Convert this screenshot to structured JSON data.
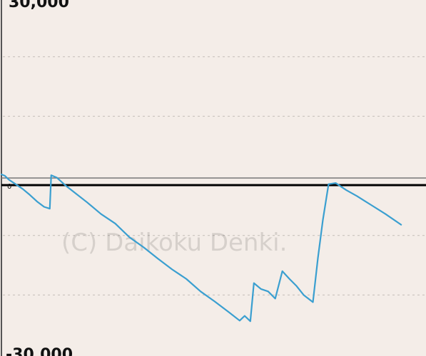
{
  "chart_data": {
    "type": "line",
    "xlim": [
      0,
      597
    ],
    "ylim": [
      -30000,
      30000
    ],
    "y_ticks": [
      {
        "value": 30000,
        "label": "30,000"
      },
      {
        "value": 0,
        "label": "0"
      },
      {
        "value": -30000,
        "label": "-30,000"
      }
    ],
    "grid": true,
    "colors": {
      "line": "#3a9fd0",
      "grid": "#c9c2bd",
      "axis": "#555555",
      "zero_line": "#000000"
    },
    "series": [
      {
        "name": "",
        "points": [
          [
            0,
            250
          ],
          [
            5,
            0
          ],
          [
            10,
            -600
          ],
          [
            20,
            -1400
          ],
          [
            30,
            -2200
          ],
          [
            40,
            -3200
          ],
          [
            50,
            -4300
          ],
          [
            60,
            -5200
          ],
          [
            68,
            -5500
          ],
          [
            70,
            100
          ],
          [
            78,
            -300
          ],
          [
            90,
            -1600
          ],
          [
            105,
            -3000
          ],
          [
            120,
            -4400
          ],
          [
            140,
            -6400
          ],
          [
            160,
            -8000
          ],
          [
            180,
            -10300
          ],
          [
            200,
            -12000
          ],
          [
            220,
            -13900
          ],
          [
            240,
            -15700
          ],
          [
            260,
            -17300
          ],
          [
            280,
            -19400
          ],
          [
            300,
            -21100
          ],
          [
            320,
            -22900
          ],
          [
            335,
            -24300
          ],
          [
            342,
            -23500
          ],
          [
            350,
            -24400
          ],
          [
            355,
            -18000
          ],
          [
            365,
            -19000
          ],
          [
            375,
            -19400
          ],
          [
            385,
            -20600
          ],
          [
            395,
            -16000
          ],
          [
            405,
            -17300
          ],
          [
            415,
            -18500
          ],
          [
            425,
            -20000
          ],
          [
            438,
            -21200
          ],
          [
            445,
            -13800
          ],
          [
            452,
            -7400
          ],
          [
            460,
            -1400
          ],
          [
            470,
            -1200
          ],
          [
            485,
            -2400
          ],
          [
            500,
            -3400
          ],
          [
            520,
            -4900
          ],
          [
            540,
            -6400
          ],
          [
            562,
            -8200
          ]
        ]
      }
    ],
    "watermark": "(C) Daikoku Denki."
  }
}
